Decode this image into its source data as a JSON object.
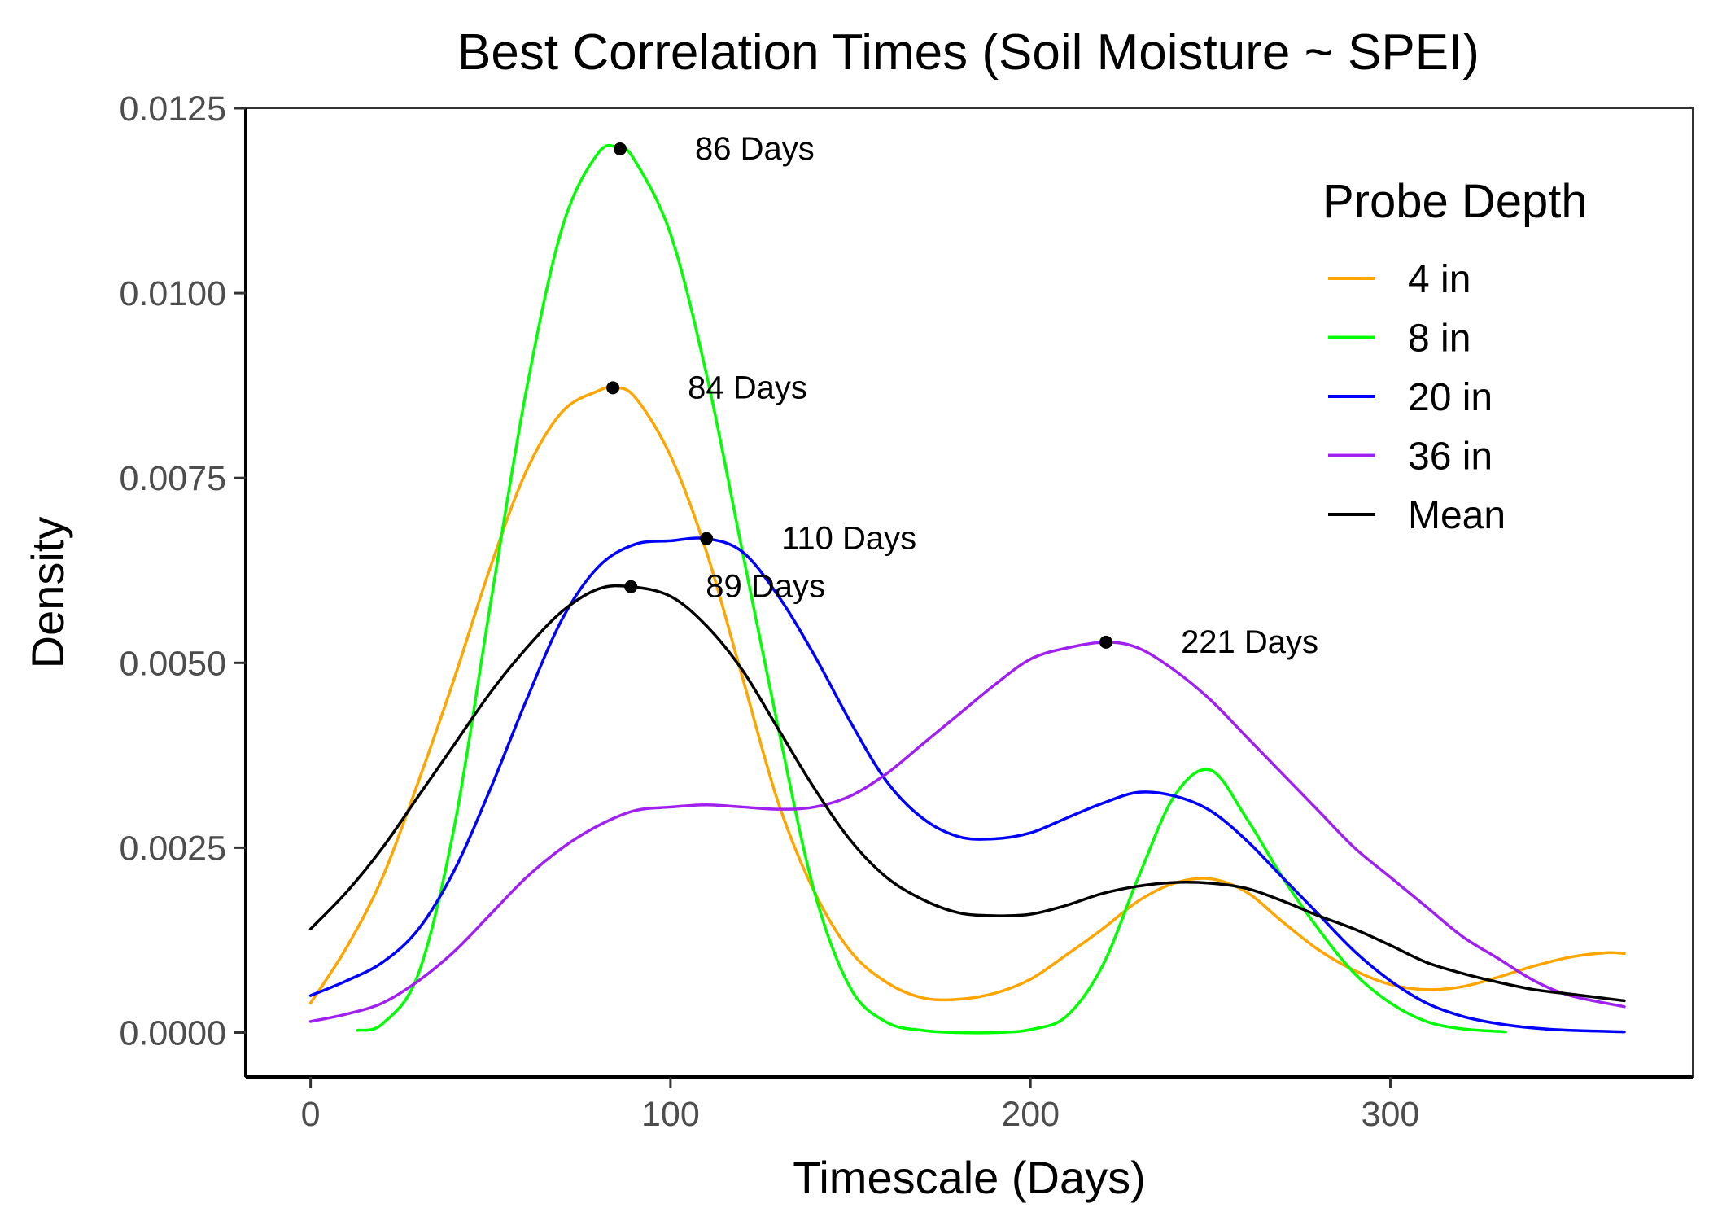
{
  "chart_data": {
    "type": "line",
    "title": "Best Correlation Times (Soil Moisture ~ SPEI)",
    "xlabel": "Timescale (Days)",
    "ylabel": "Density",
    "xlim": [
      -18,
      384
    ],
    "ylim": [
      -0.0006,
      0.0125
    ],
    "x_ticks": [
      0,
      100,
      200,
      300
    ],
    "x_tick_labels": [
      "0",
      "100",
      "200",
      "300"
    ],
    "y_ticks": [
      0.0,
      0.0025,
      0.005,
      0.0075,
      0.01,
      0.0125
    ],
    "y_tick_labels": [
      "0.0000",
      "0.0025",
      "0.0050",
      "0.0075",
      "0.0100",
      "0.0125"
    ],
    "grid": false,
    "legend": {
      "title": "Probe Depth",
      "position": "top-right"
    },
    "series": [
      {
        "name": "4 in",
        "color": "#FFA500",
        "x": [
          0,
          10,
          20,
          30,
          40,
          50,
          60,
          70,
          80,
          84,
          90,
          100,
          110,
          120,
          130,
          140,
          150,
          160,
          170,
          180,
          190,
          200,
          210,
          220,
          230,
          240,
          250,
          260,
          270,
          280,
          290,
          300,
          310,
          320,
          330,
          340,
          350,
          360,
          365
        ],
        "y": [
          0.0004,
          0.00115,
          0.0021,
          0.0034,
          0.0048,
          0.0063,
          0.0076,
          0.0084,
          0.00868,
          0.00872,
          0.0086,
          0.0078,
          0.0065,
          0.0048,
          0.0031,
          0.0019,
          0.0011,
          0.00068,
          0.00047,
          0.00045,
          0.00053,
          0.00072,
          0.00105,
          0.0014,
          0.00178,
          0.00202,
          0.00208,
          0.0019,
          0.0015,
          0.00112,
          0.00084,
          0.00065,
          0.00058,
          0.00062,
          0.00075,
          0.0009,
          0.00102,
          0.00108,
          0.00107
        ]
      },
      {
        "name": "8 in",
        "color": "#00FF00",
        "x": [
          13,
          20,
          30,
          40,
          50,
          60,
          70,
          80,
          86,
          90,
          100,
          110,
          120,
          130,
          140,
          150,
          160,
          170,
          180,
          190,
          200,
          210,
          220,
          230,
          240,
          250,
          260,
          270,
          280,
          290,
          300,
          310,
          320,
          332
        ],
        "y": [
          3e-05,
          0.00012,
          0.0008,
          0.0028,
          0.0058,
          0.0087,
          0.0109,
          0.0119,
          0.01195,
          0.0118,
          0.0108,
          0.0089,
          0.0065,
          0.0041,
          0.0019,
          0.0006,
          0.00014,
          3e-05,
          0.0,
          0.0,
          4e-05,
          0.00022,
          0.0009,
          0.0021,
          0.0032,
          0.00355,
          0.0029,
          0.0021,
          0.0014,
          0.0008,
          0.0004,
          0.00015,
          5e-05,
          1e-05
        ]
      },
      {
        "name": "20 in",
        "color": "#0000FF",
        "x": [
          0,
          10,
          20,
          30,
          40,
          50,
          60,
          70,
          80,
          90,
          100,
          110,
          120,
          130,
          140,
          150,
          160,
          170,
          180,
          190,
          200,
          210,
          220,
          230,
          240,
          250,
          260,
          270,
          280,
          290,
          300,
          310,
          320,
          330,
          340,
          350,
          365
        ],
        "y": [
          0.0005,
          0.0007,
          0.00095,
          0.0014,
          0.0022,
          0.0033,
          0.0045,
          0.0056,
          0.0063,
          0.0066,
          0.00665,
          0.00668,
          0.0065,
          0.0059,
          0.0051,
          0.0042,
          0.0034,
          0.0029,
          0.00265,
          0.00262,
          0.0027,
          0.0029,
          0.0031,
          0.00325,
          0.0032,
          0.003,
          0.0026,
          0.0021,
          0.0016,
          0.0011,
          0.0007,
          0.0004,
          0.00022,
          0.00012,
          6e-05,
          3e-05,
          1e-05
        ]
      },
      {
        "name": "36 in",
        "color": "#A020F0",
        "x": [
          0,
          10,
          20,
          30,
          40,
          50,
          60,
          70,
          80,
          90,
          100,
          110,
          120,
          130,
          140,
          150,
          160,
          170,
          180,
          190,
          200,
          210,
          221,
          230,
          240,
          250,
          260,
          270,
          280,
          290,
          300,
          310,
          320,
          330,
          340,
          350,
          365
        ],
        "y": [
          0.00015,
          0.00025,
          0.0004,
          0.0007,
          0.0011,
          0.0016,
          0.0021,
          0.0025,
          0.0028,
          0.003,
          0.00305,
          0.00308,
          0.00305,
          0.00302,
          0.00305,
          0.0032,
          0.0035,
          0.0039,
          0.0043,
          0.0047,
          0.00505,
          0.0052,
          0.00528,
          0.0052,
          0.0049,
          0.0045,
          0.004,
          0.0035,
          0.003,
          0.0025,
          0.0021,
          0.0017,
          0.0013,
          0.001,
          0.0007,
          0.0005,
          0.00035
        ]
      },
      {
        "name": "Mean",
        "color": "#000000",
        "x": [
          0,
          10,
          20,
          30,
          40,
          50,
          60,
          70,
          80,
          89,
          100,
          110,
          120,
          130,
          140,
          150,
          160,
          170,
          180,
          190,
          200,
          210,
          220,
          230,
          240,
          250,
          260,
          270,
          280,
          290,
          300,
          310,
          320,
          330,
          340,
          350,
          365
        ],
        "y": [
          0.0014,
          0.0019,
          0.0025,
          0.0032,
          0.0039,
          0.0046,
          0.0052,
          0.0057,
          0.006,
          0.00603,
          0.0059,
          0.0055,
          0.0049,
          0.0041,
          0.0033,
          0.0026,
          0.0021,
          0.0018,
          0.00162,
          0.00158,
          0.0016,
          0.00172,
          0.00188,
          0.00198,
          0.00203,
          0.00202,
          0.00195,
          0.00178,
          0.00158,
          0.0014,
          0.00118,
          0.00095,
          0.0008,
          0.00068,
          0.00058,
          0.00052,
          0.00043
        ]
      }
    ],
    "annotations": [
      {
        "label": "86 Days",
        "x": 86,
        "y": 0.01195
      },
      {
        "label": "84 Days",
        "x": 84,
        "y": 0.00872
      },
      {
        "label": "110 Days",
        "x": 110,
        "y": 0.00668
      },
      {
        "label": "89 Days",
        "x": 89,
        "y": 0.00603
      },
      {
        "label": "221 Days",
        "x": 221,
        "y": 0.00528
      }
    ]
  }
}
